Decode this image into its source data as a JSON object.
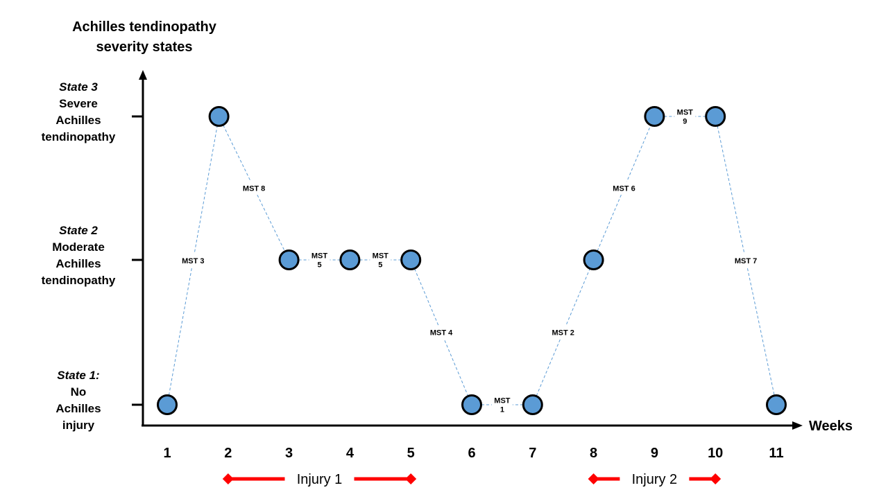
{
  "title_lines": [
    "Achilles tendinopathy",
    "severity states"
  ],
  "x_axis": {
    "label": "Weeks",
    "ticks": [
      "1",
      "2",
      "3",
      "4",
      "5",
      "6",
      "7",
      "8",
      "9",
      "10",
      "11"
    ]
  },
  "y_states": [
    {
      "level": 3,
      "lines": [
        "State 3",
        "Severe",
        "Achilles",
        "tendinopathy"
      ]
    },
    {
      "level": 2,
      "lines": [
        "State 2",
        "Moderate",
        "Achilles",
        "tendinopathy"
      ]
    },
    {
      "level": 1,
      "lines": [
        "State 1:",
        "No",
        "Achilles",
        "injury"
      ]
    }
  ],
  "points": [
    {
      "week": 1,
      "state": 1
    },
    {
      "week": 1.85,
      "state": 3
    },
    {
      "week": 3,
      "state": 2
    },
    {
      "week": 4,
      "state": 2
    },
    {
      "week": 5,
      "state": 2
    },
    {
      "week": 6,
      "state": 1
    },
    {
      "week": 7,
      "state": 1
    },
    {
      "week": 8,
      "state": 2
    },
    {
      "week": 9,
      "state": 3
    },
    {
      "week": 10,
      "state": 3
    },
    {
      "week": 11,
      "state": 1
    }
  ],
  "transitions": [
    {
      "from": 0,
      "to": 1,
      "label": [
        "MST 3"
      ]
    },
    {
      "from": 1,
      "to": 2,
      "label": [
        "MST 8"
      ]
    },
    {
      "from": 2,
      "to": 3,
      "label": [
        "MST",
        "5"
      ]
    },
    {
      "from": 3,
      "to": 4,
      "label": [
        "MST",
        "5"
      ]
    },
    {
      "from": 4,
      "to": 5,
      "label": [
        "MST 4"
      ]
    },
    {
      "from": 5,
      "to": 6,
      "label": [
        "MST",
        "1"
      ]
    },
    {
      "from": 6,
      "to": 7,
      "label": [
        "MST 2"
      ]
    },
    {
      "from": 7,
      "to": 8,
      "label": [
        "MST 6"
      ]
    },
    {
      "from": 8,
      "to": 9,
      "label": [
        "MST",
        "9"
      ]
    },
    {
      "from": 9,
      "to": 10,
      "label": [
        "MST 7"
      ]
    }
  ],
  "injuries": [
    {
      "label": "Injury 1",
      "start_week": 2,
      "end_week": 5
    },
    {
      "label": "Injury 2",
      "start_week": 8,
      "end_week": 10
    }
  ],
  "colors": {
    "node_fill": "#5b9bd5",
    "node_stroke": "#000000",
    "transition_line": "#5b9bd5",
    "injury": "#ff0000",
    "axis": "#000000"
  }
}
